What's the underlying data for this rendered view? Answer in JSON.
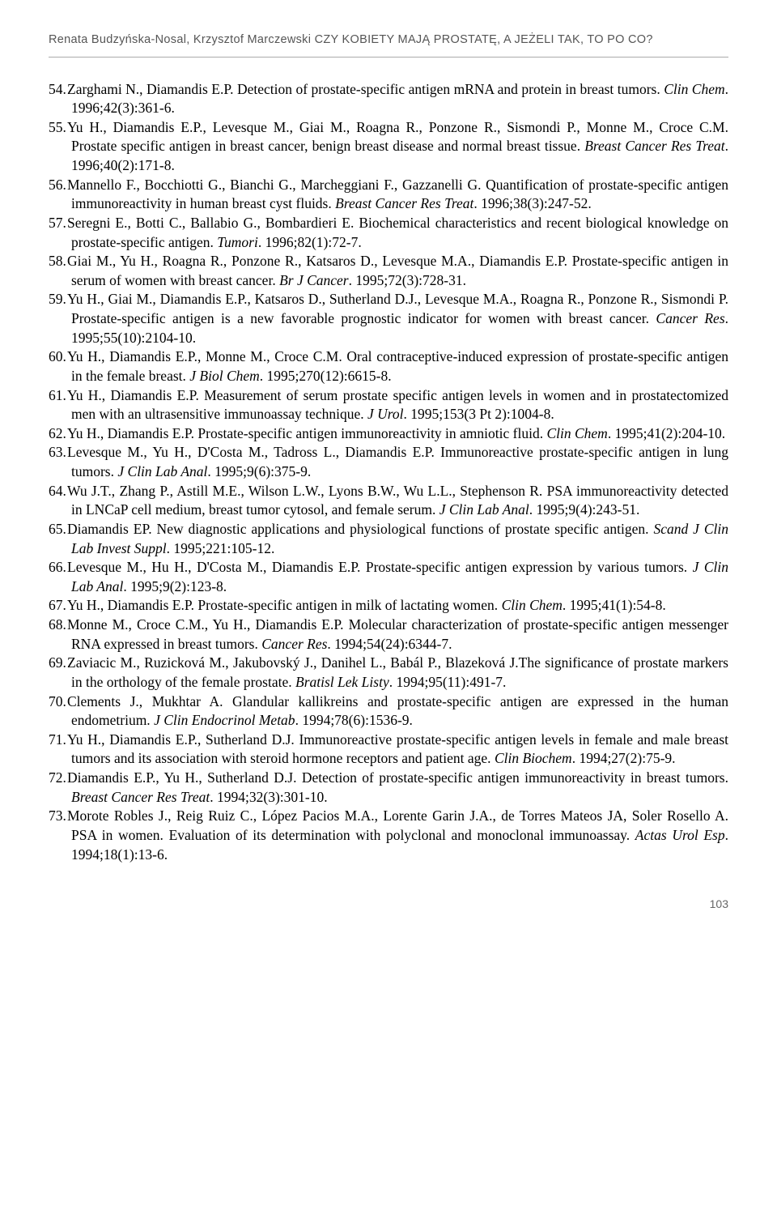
{
  "header": {
    "text": "Renata Budzyńska-Nosal, Krzysztof Marczewski CZY KOBIETY MAJĄ PROSTATĘ, A JEŻELI TAK, TO PO CO?"
  },
  "references": [
    {
      "n": "54.",
      "authors": "Zarghami N., Diamandis E.P. Detection of prostate-specific antigen mRNA and protein in breast tumors. ",
      "journal": "Clin Chem",
      "tail": ". 1996;42(3):361-6."
    },
    {
      "n": "55.",
      "authors": "Yu H., Diamandis E.P., Levesque M., Giai M., Roagna R., Ponzone R., Sismondi P., Monne M., Croce C.M. Prostate specific antigen in breast cancer, benign breast disease and normal breast tissue. ",
      "journal": "Breast Cancer Res Treat",
      "tail": ". 1996;40(2):171-8."
    },
    {
      "n": "56.",
      "authors": "Mannello F., Bocchiotti G., Bianchi G., Marcheggiani F., Gazzanelli G. Quantification of prostate-specific antigen immunoreactivity in human breast cyst fluids. ",
      "journal": "Breast Cancer Res Treat",
      "tail": ". 1996;38(3):247-52."
    },
    {
      "n": "57.",
      "authors": "Seregni E., Botti C., Ballabio G., Bombardieri E. Biochemical characteristics and recent biological knowledge on prostate-specific antigen. ",
      "journal": "Tumori",
      "tail": ". 1996;82(1):72-7."
    },
    {
      "n": "58.",
      "authors": "Giai M., Yu H., Roagna R., Ponzone R., Katsaros D., Levesque M.A., Diamandis E.P. Prostate-specific antigen in serum of women with breast cancer. ",
      "journal": "Br J Cancer",
      "tail": ". 1995;72(3):728-31."
    },
    {
      "n": "59.",
      "authors": "Yu H., Giai M., Diamandis E.P., Katsaros D., Sutherland D.J., Levesque M.A., Roagna R., Ponzone R., Sismondi P. Prostate-specific antigen is a new favorable prognostic indicator for women with breast cancer. ",
      "journal": "Cancer Res",
      "tail": ". 1995;55(10):2104-10."
    },
    {
      "n": "60.",
      "authors": "Yu H., Diamandis E.P., Monne M., Croce C.M. Oral contraceptive-induced expression of prostate-specific antigen in the female breast. ",
      "journal": "J Biol Chem",
      "tail": ". 1995;270(12):6615-8."
    },
    {
      "n": "61.",
      "authors": "Yu H., Diamandis E.P. Measurement of serum prostate specific antigen levels in women and in prostatectomized men with an ultrasensitive immunoassay technique. ",
      "journal": "J Urol",
      "tail": ". 1995;153(3 Pt 2):1004-8."
    },
    {
      "n": "62.",
      "authors": "Yu H., Diamandis E.P. Prostate-specific antigen immunoreactivity in amniotic fluid. ",
      "journal": "Clin Chem",
      "tail": ". 1995;41(2):204-10."
    },
    {
      "n": "63.",
      "authors": "Levesque M., Yu H., D'Costa M., Tadross L., Diamandis E.P. Immunoreactive prostate-specific antigen in lung tumors. ",
      "journal": "J Clin Lab Anal",
      "tail": ". 1995;9(6):375-9."
    },
    {
      "n": "64.",
      "authors": "Wu J.T., Zhang P., Astill M.E., Wilson L.W., Lyons B.W., Wu L.L., Stephenson R. PSA immunoreactivity detected in LNCaP cell medium, breast tumor cytosol, and female serum. ",
      "journal": "J Clin Lab Anal",
      "tail": ". 1995;9(4):243-51."
    },
    {
      "n": "65.",
      "authors": "Diamandis EP. New diagnostic applications and physiological functions of prostate specific antigen. ",
      "journal": "Scand J Clin Lab Invest Suppl",
      "tail": ". 1995;221:105-12."
    },
    {
      "n": "66.",
      "authors": "Levesque M., Hu H., D'Costa M., Diamandis E.P. Prostate-specific antigen expression by various tumors. ",
      "journal": "J Clin Lab Anal",
      "tail": ". 1995;9(2):123-8."
    },
    {
      "n": "67.",
      "authors": "Yu H., Diamandis E.P. Prostate-specific antigen in milk of lactating women. ",
      "journal": "Clin Chem",
      "tail": ". 1995;41(1):54-8."
    },
    {
      "n": "68.",
      "authors": "Monne M., Croce C.M., Yu H., Diamandis E.P. Molecular characterization of prostate-specific antigen messenger RNA expressed in breast tumors. ",
      "journal": "Cancer Res",
      "tail": ". 1994;54(24):6344-7."
    },
    {
      "n": "69.",
      "authors": "Zaviacic M., Ruzicková M., Jakubovský J., Danihel L., Babál P., Blazeková J.The significance of prostate markers in the orthology of the female prostate. ",
      "journal": "Bratisl Lek Listy",
      "tail": ". 1994;95(11):491-7."
    },
    {
      "n": "70.",
      "authors": "Clements J., Mukhtar A. Glandular kallikreins and prostate-specific antigen are expressed in the human endometrium. ",
      "journal": "J Clin Endocrinol Metab",
      "tail": ". 1994;78(6):1536-9."
    },
    {
      "n": "71.",
      "authors": "Yu H., Diamandis E.P., Sutherland D.J. Immunoreactive prostate-specific antigen levels in female and male breast tumors and its association with steroid hormone receptors and patient age. ",
      "journal": "Clin Biochem",
      "tail": ". 1994;27(2):75-9."
    },
    {
      "n": "72.",
      "authors": "Diamandis E.P., Yu H., Sutherland D.J. Detection of prostate-specific antigen immunoreactivity in breast tumors. ",
      "journal": "Breast Cancer Res Treat",
      "tail": ". 1994;32(3):301-10."
    },
    {
      "n": "73.",
      "authors": "Morote Robles J., Reig Ruiz C., López Pacios M.A., Lorente Garin J.A., de Torres Mateos JA, Soler Rosello A. PSA in women. Evaluation of its determination with polyclonal and monoclonal immunoassay. ",
      "journal": "Actas Urol Esp",
      "tail": ". 1994;18(1):13-6."
    }
  ],
  "page_number": "103"
}
